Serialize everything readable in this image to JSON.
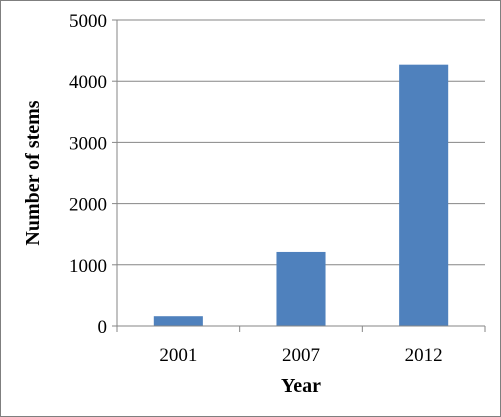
{
  "chart_data": {
    "type": "bar",
    "categories": [
      "2001",
      "2007",
      "2012"
    ],
    "values": [
      160,
      1210,
      4270
    ],
    "xlabel": "Year",
    "ylabel": "Number of stems",
    "ylim": [
      0,
      5000
    ],
    "yticks": [
      0,
      1000,
      2000,
      3000,
      4000,
      5000
    ],
    "grid": "horizontal",
    "legend": "none",
    "bar_color": "#4f81bd",
    "grid_color": "#868686"
  }
}
